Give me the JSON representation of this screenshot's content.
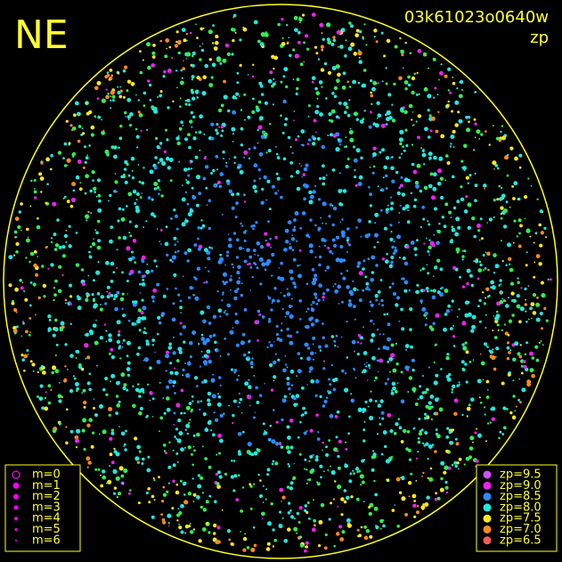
{
  "header": {
    "title": "NE",
    "id": "03k61023o0640w",
    "subtitle": "zp"
  },
  "legend_m": {
    "items": [
      "m=0",
      "m=1",
      "m=2",
      "m=3",
      "m=4",
      "m=5",
      "m=6"
    ],
    "color": "#ff00ff"
  },
  "legend_zp": {
    "items": [
      {
        "label": "zp=9.5",
        "color": "#d050ff"
      },
      {
        "label": "zp=9.0",
        "color": "#ee22ee"
      },
      {
        "label": "zp=8.5",
        "color": "#2a8cff"
      },
      {
        "label": "zp=8.0",
        "color": "#22e8e0"
      },
      {
        "label": "zp=7.5",
        "color": "#ffe81e"
      },
      {
        "label": "zp=7.0",
        "color": "#ff8a1e"
      },
      {
        "label": "zp=6.5",
        "color": "#ff5a5a"
      }
    ]
  }
}
